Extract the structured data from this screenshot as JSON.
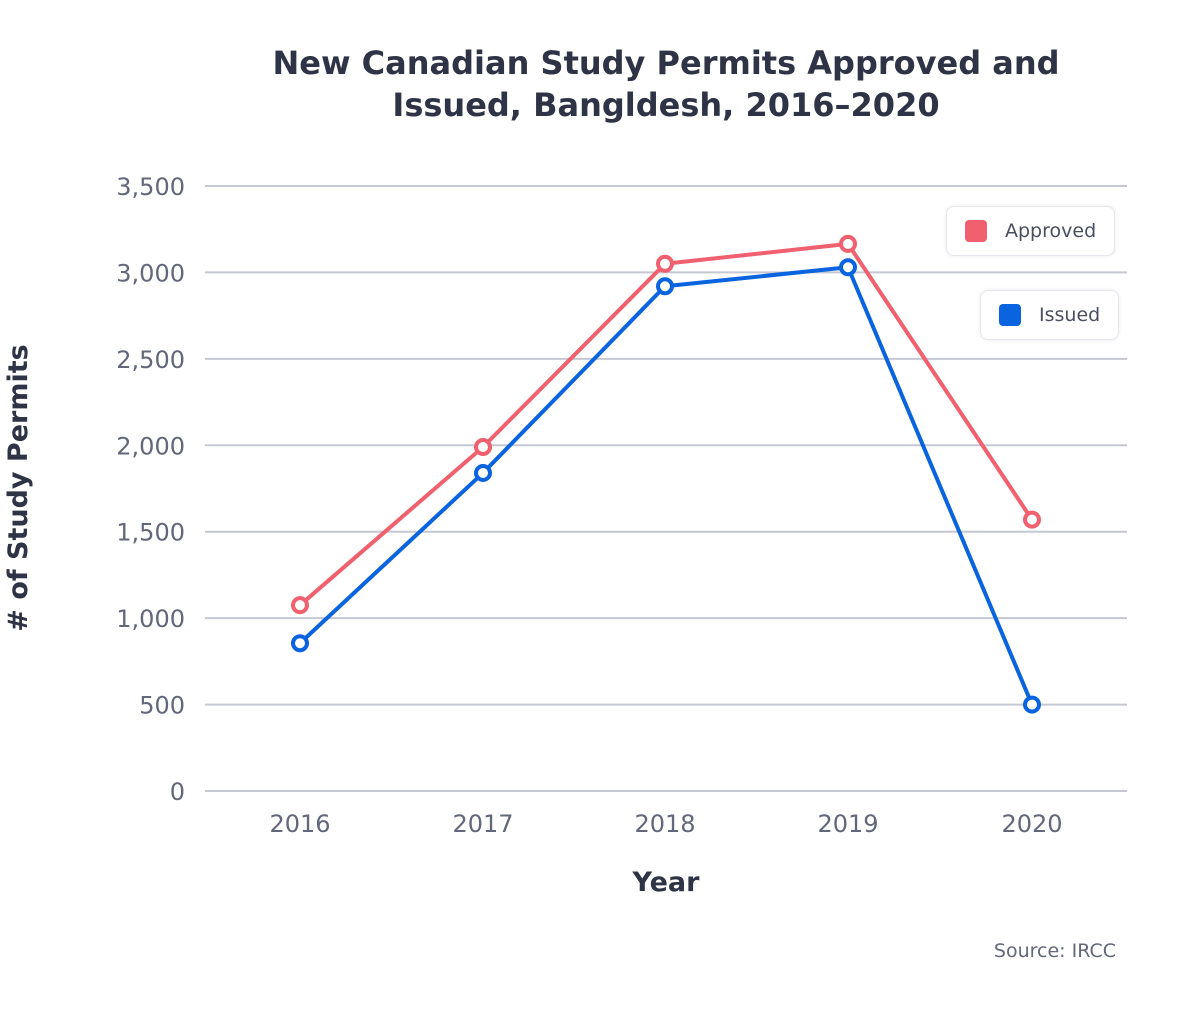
{
  "chart_data": {
    "type": "line",
    "title": "New Canadian Study Permits Approved and Issued, Bangldesh, 2016–2020",
    "xlabel": "Year",
    "ylabel": "# of Study Permits",
    "categories": [
      "2016",
      "2017",
      "2018",
      "2019",
      "2020"
    ],
    "ylim": [
      0,
      3500
    ],
    "yticks": [
      "0",
      "500",
      "1,000",
      "1,500",
      "2,000",
      "2,500",
      "3,000",
      "3,500"
    ],
    "ytick_values": [
      0,
      500,
      1000,
      1500,
      2000,
      2500,
      3000,
      3500
    ],
    "grid": true,
    "legend_position": "top-right",
    "series": [
      {
        "name": "Approved",
        "color": "#f0606e",
        "values": [
          1075,
          1990,
          3050,
          3165,
          1570
        ]
      },
      {
        "name": "Issued",
        "color": "#0a64e0",
        "values": [
          855,
          1840,
          2920,
          3030,
          500
        ]
      }
    ],
    "source": "Source: IRCC"
  }
}
